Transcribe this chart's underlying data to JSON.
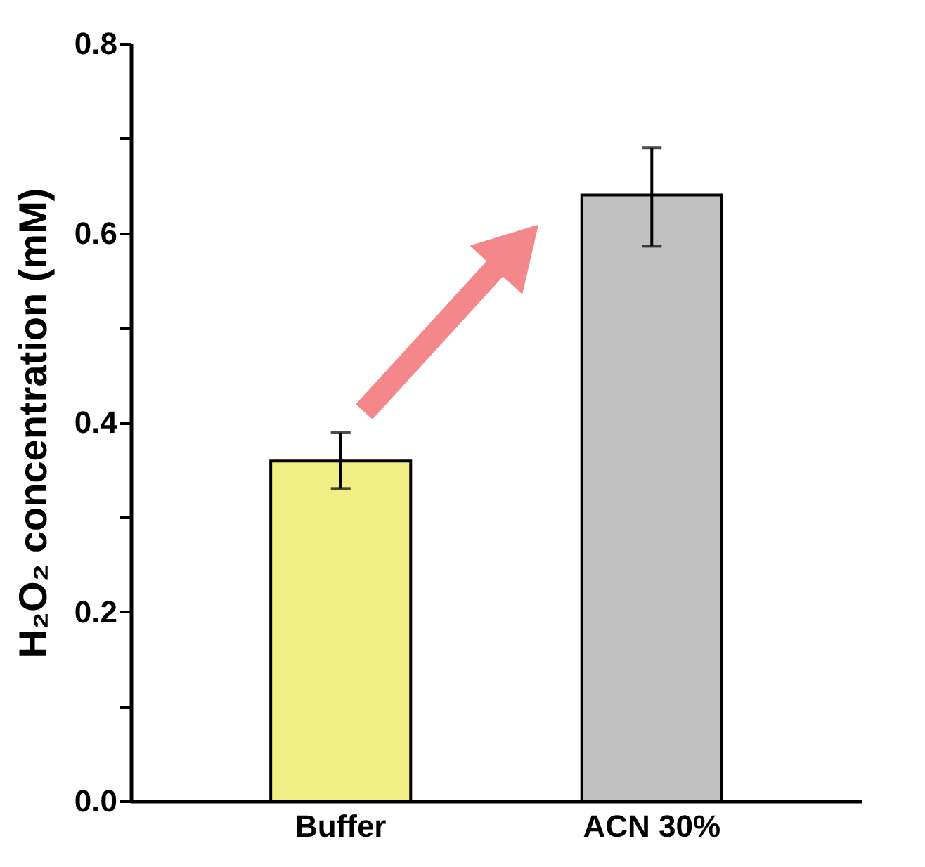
{
  "chart_data": {
    "type": "bar",
    "ylabel": "H₂O₂ concentration (mM)",
    "categories": [
      "Buffer",
      "ACN 30%"
    ],
    "values": [
      0.359,
      0.64
    ],
    "colors": [
      "#f0ee84",
      "#c0c0c0"
    ],
    "errors": [
      [
        0.33,
        0.389
      ],
      [
        0.586,
        0.69
      ]
    ],
    "ylim": [
      0,
      0.8
    ],
    "yticks": [
      {
        "value": 0,
        "label": "0.0"
      },
      {
        "value": 0.1,
        "label": null
      },
      0.2,
      {
        "value": 0.3,
        "label": null
      },
      0.4,
      {
        "value": 0.5,
        "label": null
      },
      0.6,
      {
        "value": 0.7,
        "label": null
      },
      0.8
    ],
    "grid": false,
    "legend": false
  }
}
